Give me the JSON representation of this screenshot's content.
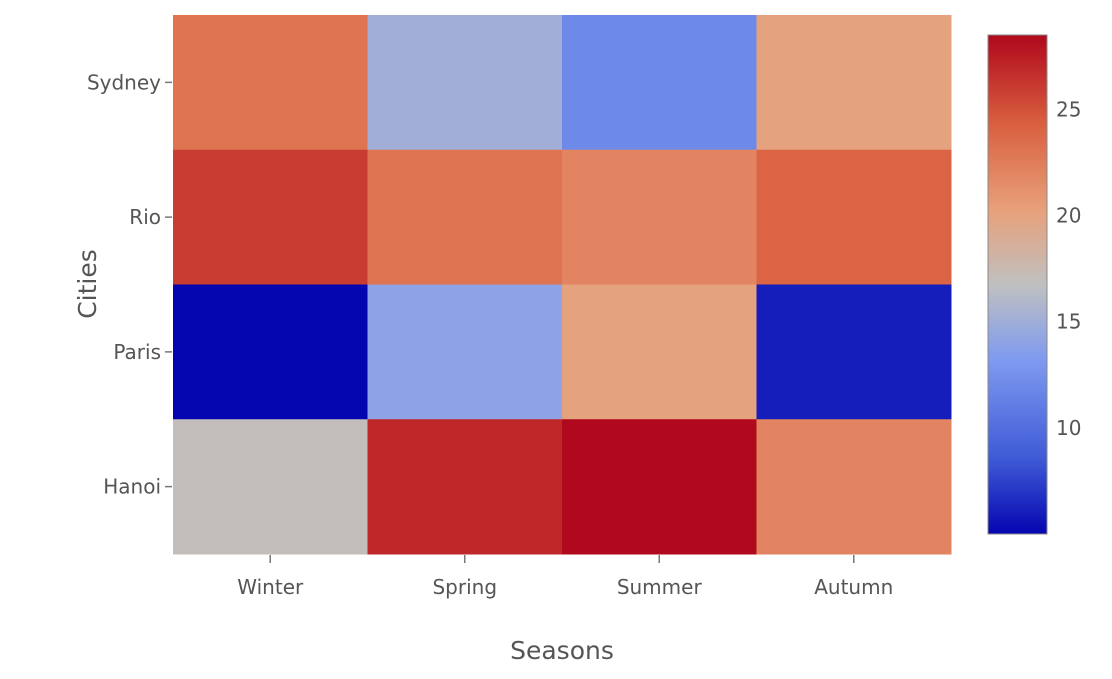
{
  "chart_data": {
    "type": "heatmap",
    "title": "",
    "xlabel": "Seasons",
    "ylabel": "Cities",
    "x_categories": [
      "Winter",
      "Spring",
      "Summer",
      "Autumn"
    ],
    "y_categories": [
      "Sydney",
      "Rio",
      "Paris",
      "Hanoi"
    ],
    "values": [
      [
        23,
        15,
        12,
        20
      ],
      [
        26,
        23,
        22,
        24
      ],
      [
        5,
        14,
        20,
        6
      ],
      [
        17,
        27,
        28.5,
        22
      ]
    ],
    "colorbar": {
      "range": [
        5,
        28.5
      ],
      "ticks": [
        10,
        15,
        20,
        25
      ],
      "colorscale": [
        [
          0.0,
          "#0505b0"
        ],
        [
          0.15,
          "#3e5ad6"
        ],
        [
          0.35,
          "#7f9bf0"
        ],
        [
          0.5,
          "#c0c0c0"
        ],
        [
          0.65,
          "#e8a07a"
        ],
        [
          0.82,
          "#d96040"
        ],
        [
          1.0,
          "#b0081c"
        ]
      ]
    },
    "grid": false,
    "legend": "colorbar-right"
  }
}
